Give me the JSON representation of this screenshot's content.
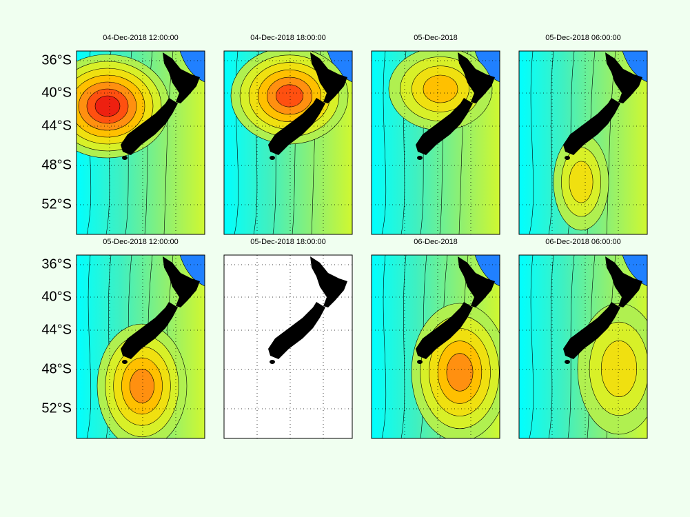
{
  "panels": [
    {
      "title": "04-Dec-2018 12:00:00"
    },
    {
      "title": "04-Dec-2018 18:00:00"
    },
    {
      "title": "05-Dec-2018"
    },
    {
      "title": "05-Dec-2018 06:00:00"
    },
    {
      "title": "05-Dec-2018 12:00:00"
    },
    {
      "title": "05-Dec-2018 18:00:00"
    },
    {
      "title": "06-Dec-2018"
    },
    {
      "title": "06-Dec-2018 06:00:00"
    }
  ],
  "y_axis_labels": [
    "36°S",
    "40°S",
    "44°S",
    "48°S",
    "52°S"
  ]
}
